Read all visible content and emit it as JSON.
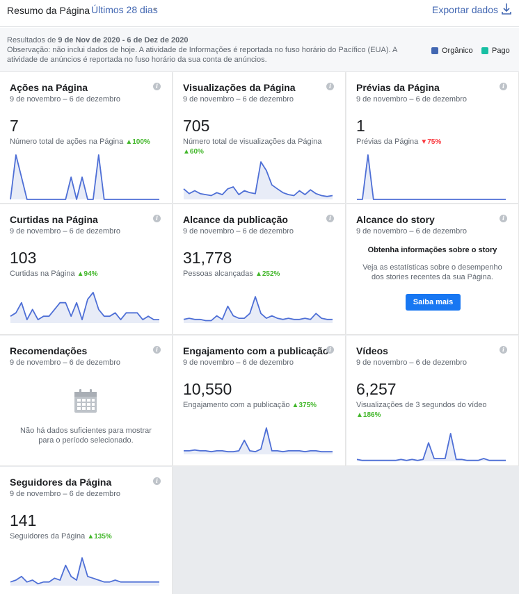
{
  "header": {
    "title": "Resumo da Página",
    "range": "Últimos 28 dias",
    "export": "Exportar dados"
  },
  "notes": {
    "results_prefix": "Resultados de ",
    "results_range": "9 de Nov de 2020 - 6 de Dez de 2020",
    "observation": "Observação: não inclui dados de hoje. A atividade de Informações é reportada no fuso horário do Pacífico (EUA). A atividade de anúncios é reportada no fuso horário da sua conta de anúncios."
  },
  "legend": {
    "organic": "Orgânico",
    "paid": "Pago"
  },
  "colors": {
    "organic": "#4267b2",
    "paid": "#18bfa3",
    "line": "#4e6fd6",
    "fill": "#e8ecf7",
    "up": "#42b72a",
    "down": "#fa383e"
  },
  "date_range": "9 de novembro – 6 de dezembro",
  "cards": {
    "acoes": {
      "title": "Ações na Página",
      "value": "7",
      "label": "Número total de ações na Página",
      "change": "100%",
      "dir": "up",
      "series": [
        0,
        4,
        2,
        0,
        0,
        0,
        0,
        0,
        0,
        0,
        0,
        2,
        0,
        2,
        0,
        0,
        4,
        0,
        0,
        0,
        0,
        0,
        0,
        0,
        0,
        0,
        0,
        0
      ]
    },
    "visualizacoes": {
      "title": "Visualizações da Página",
      "value": "705",
      "label": "Número total de visualizações da Página",
      "change": "60%",
      "dir": "up",
      "series": [
        22,
        12,
        18,
        12,
        10,
        8,
        14,
        10,
        22,
        26,
        10,
        18,
        14,
        12,
        78,
        60,
        30,
        22,
        14,
        10,
        8,
        18,
        10,
        20,
        12,
        8,
        6,
        8
      ]
    },
    "previas": {
      "title": "Prévias da Página",
      "value": "1",
      "label": "Prévias da Página",
      "change": "75%",
      "dir": "down",
      "series": [
        0,
        0,
        1,
        0,
        0,
        0,
        0,
        0,
        0,
        0,
        0,
        0,
        0,
        0,
        0,
        0,
        0,
        0,
        0,
        0,
        0,
        0,
        0,
        0,
        0,
        0,
        0,
        0
      ]
    },
    "curtidas": {
      "title": "Curtidas na Página",
      "value": "103",
      "label": "Curtidas na Página",
      "change": "94%",
      "dir": "up",
      "series": [
        4,
        6,
        12,
        2,
        8,
        2,
        4,
        4,
        8,
        12,
        12,
        4,
        12,
        2,
        14,
        18,
        8,
        4,
        4,
        6,
        2,
        6,
        6,
        6,
        2,
        4,
        2,
        2
      ]
    },
    "alcance": {
      "title": "Alcance da publicação",
      "value": "31,778",
      "label": "Pessoas alcançadas",
      "change": "252%",
      "dir": "up",
      "series": [
        3,
        4,
        3,
        3,
        2,
        2,
        6,
        3,
        14,
        6,
        4,
        4,
        8,
        22,
        8,
        4,
        6,
        4,
        3,
        4,
        3,
        3,
        4,
        3,
        8,
        4,
        3,
        3
      ]
    },
    "story": {
      "title": "Alcance do story",
      "heading": "Obtenha informações sobre o story",
      "text": "Veja as estatísticas sobre o desempenho dos stories recentes da sua Página.",
      "button": "Saiba mais"
    },
    "recomendacoes": {
      "title": "Recomendações",
      "empty": "Não há dados suficientes para mostrar para o período selecionado."
    },
    "engajamento": {
      "title": "Engajamento com a publicação",
      "value": "10,550",
      "label": "Engajamento com a publicação",
      "change": "375%",
      "dir": "up",
      "series": [
        4,
        4,
        5,
        4,
        4,
        3,
        4,
        4,
        3,
        3,
        4,
        16,
        4,
        3,
        6,
        30,
        4,
        4,
        3,
        4,
        4,
        4,
        3,
        4,
        4,
        3,
        3,
        3
      ]
    },
    "videos": {
      "title": "Vídeos",
      "value": "6,257",
      "label": "Visualizações de 3 segundos do vídeo",
      "change": "186%",
      "dir": "up",
      "series": [
        2,
        1,
        1,
        1,
        1,
        1,
        1,
        1,
        2,
        1,
        2,
        1,
        2,
        20,
        3,
        3,
        3,
        30,
        2,
        2,
        1,
        1,
        1,
        3,
        1,
        1,
        1,
        1
      ]
    },
    "seguidores": {
      "title": "Seguidores da Página",
      "value": "141",
      "label": "Seguidores da Página",
      "change": "135%",
      "dir": "up",
      "series": [
        4,
        6,
        10,
        4,
        6,
        2,
        4,
        4,
        8,
        6,
        22,
        10,
        6,
        30,
        10,
        8,
        6,
        4,
        4,
        6,
        4,
        4,
        4,
        4,
        4,
        4,
        4,
        4
      ]
    }
  }
}
